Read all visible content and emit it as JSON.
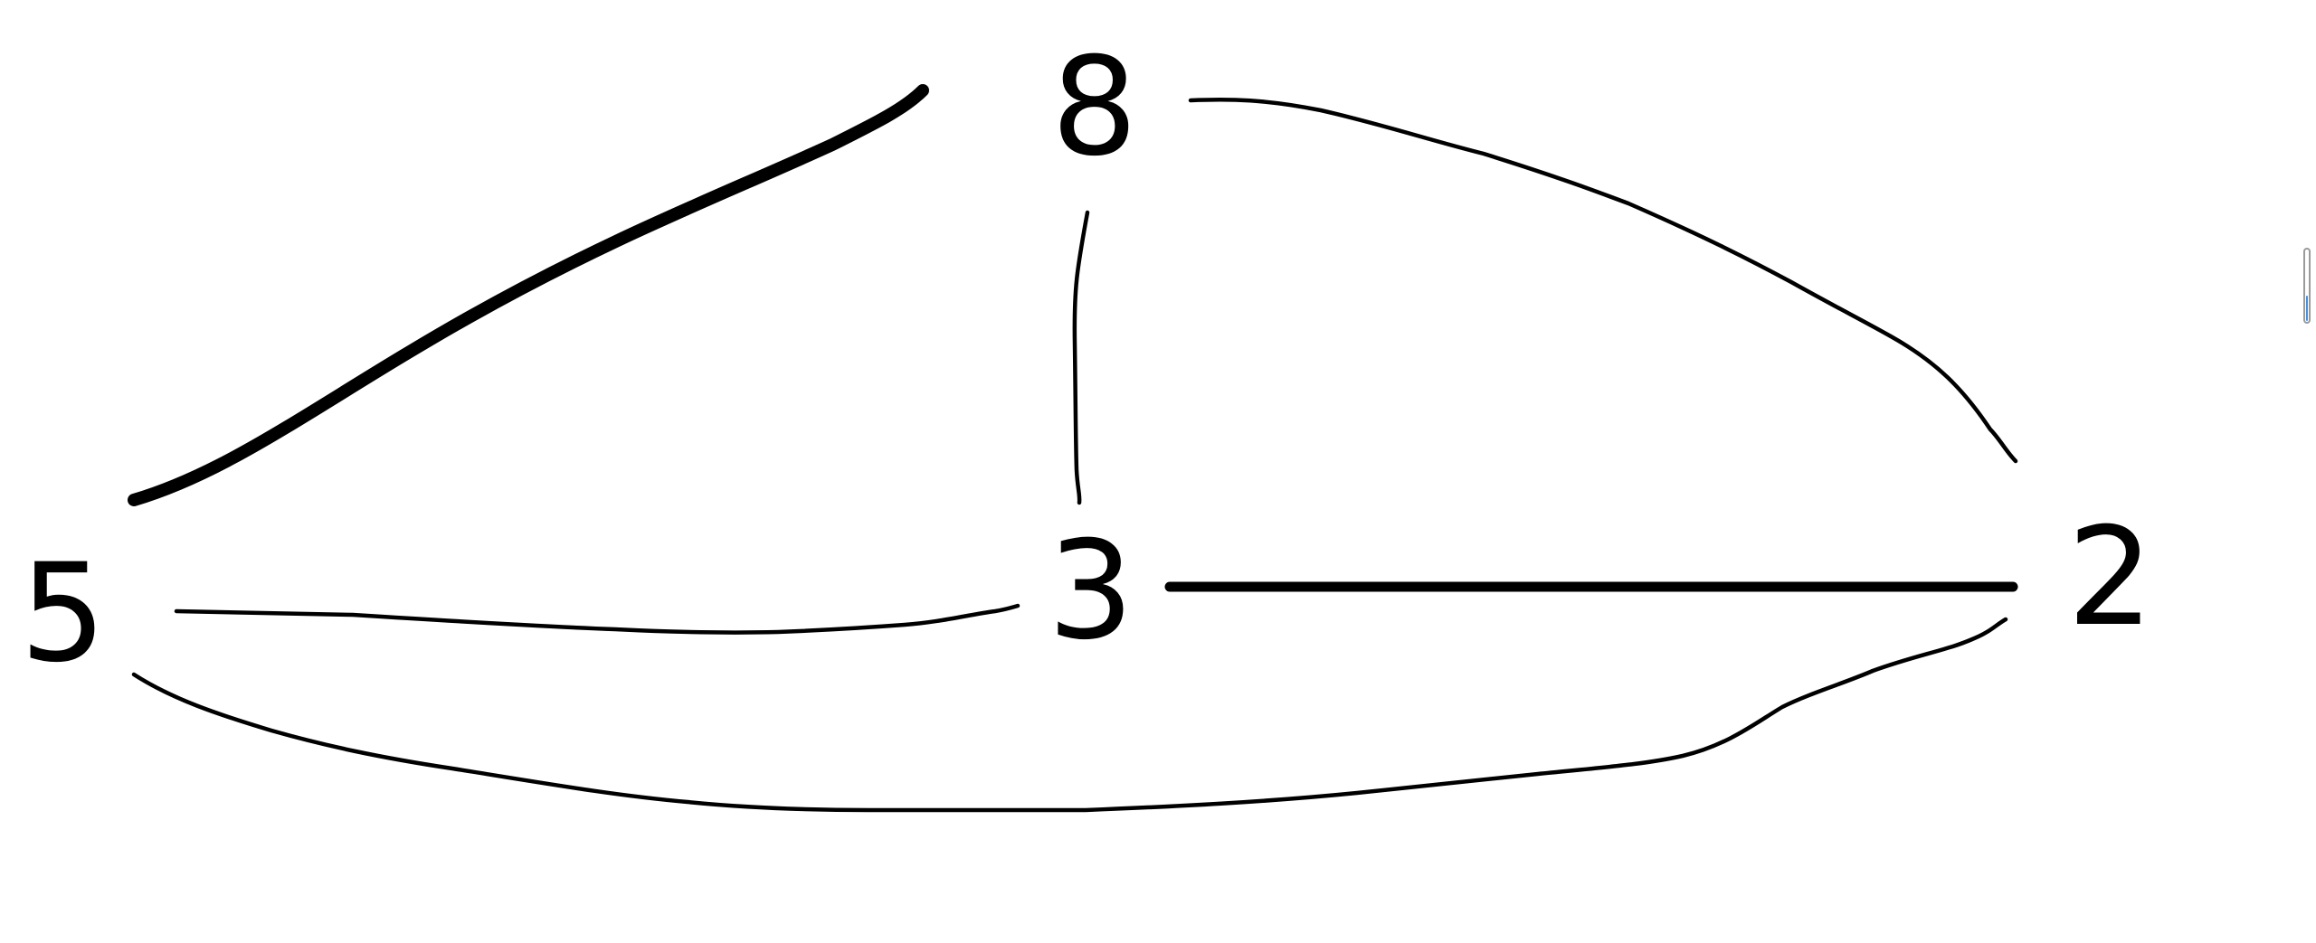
{
  "graph": {
    "nodes": [
      {
        "id": "n8",
        "label": "8"
      },
      {
        "id": "n5",
        "label": "5"
      },
      {
        "id": "n3",
        "label": "3"
      },
      {
        "id": "n2",
        "label": "2"
      }
    ],
    "edges": [
      {
        "from": "5",
        "to": "8",
        "weight": "thick"
      },
      {
        "from": "8",
        "to": "3",
        "weight": "thin"
      },
      {
        "from": "8",
        "to": "2",
        "weight": "thin"
      },
      {
        "from": "5",
        "to": "3",
        "weight": "thin"
      },
      {
        "from": "3",
        "to": "2",
        "weight": "bold"
      },
      {
        "from": "5",
        "to": "2",
        "weight": "thin"
      }
    ]
  },
  "scrollbar": {
    "fill_fraction": 0.35,
    "fill_color": "#4a90d9"
  },
  "colors": {
    "ink": "#000000",
    "background": "#ffffff"
  }
}
